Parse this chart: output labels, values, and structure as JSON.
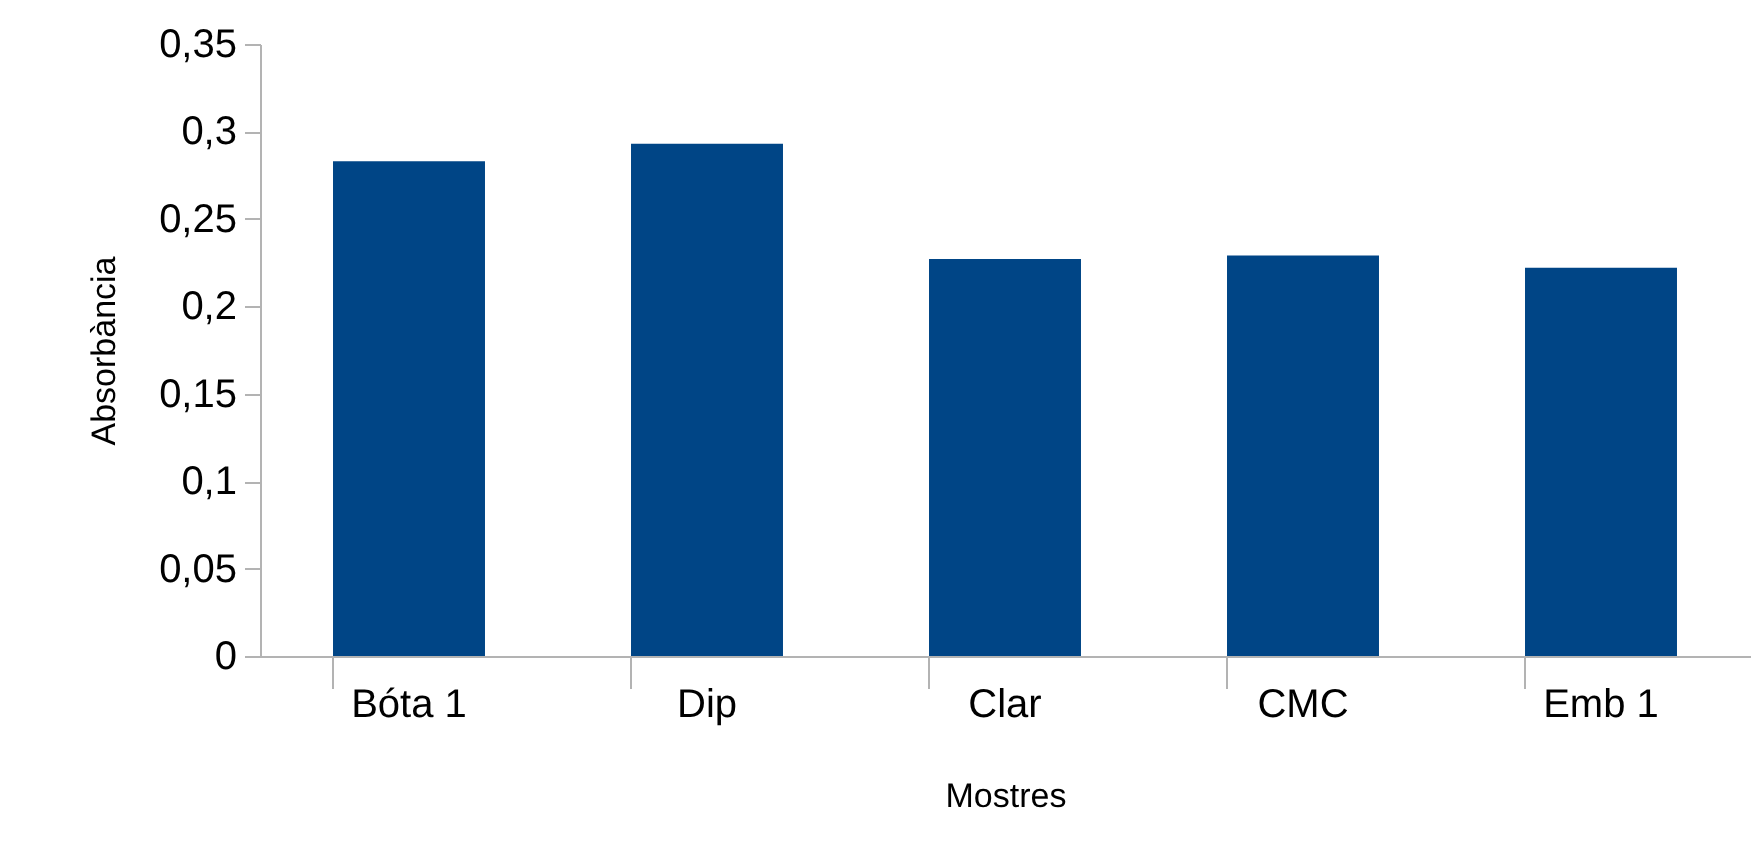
{
  "chart_data": {
    "type": "bar",
    "xlabel": "Mostres",
    "ylabel": "Absorbància",
    "categories": [
      "Bóta 1",
      "Dip",
      "Clar",
      "CMC",
      "Emb 1"
    ],
    "values": [
      0.283,
      0.293,
      0.227,
      0.229,
      0.222
    ],
    "color": "#004586",
    "ylim": [
      0,
      0.35
    ],
    "yticks": [
      0,
      {
        "value": 0.05,
        "label": "0,05"
      },
      {
        "value": 0.1,
        "label": "0,1"
      },
      {
        "value": 0.15,
        "label": "0,15"
      },
      {
        "value": 0.2,
        "label": "0,2"
      },
      {
        "value": 0.25,
        "label": "0,25"
      },
      {
        "value": 0.3,
        "label": "0,3"
      },
      {
        "value": 0.35,
        "label": "0,35"
      }
    ],
    "grid": false
  }
}
